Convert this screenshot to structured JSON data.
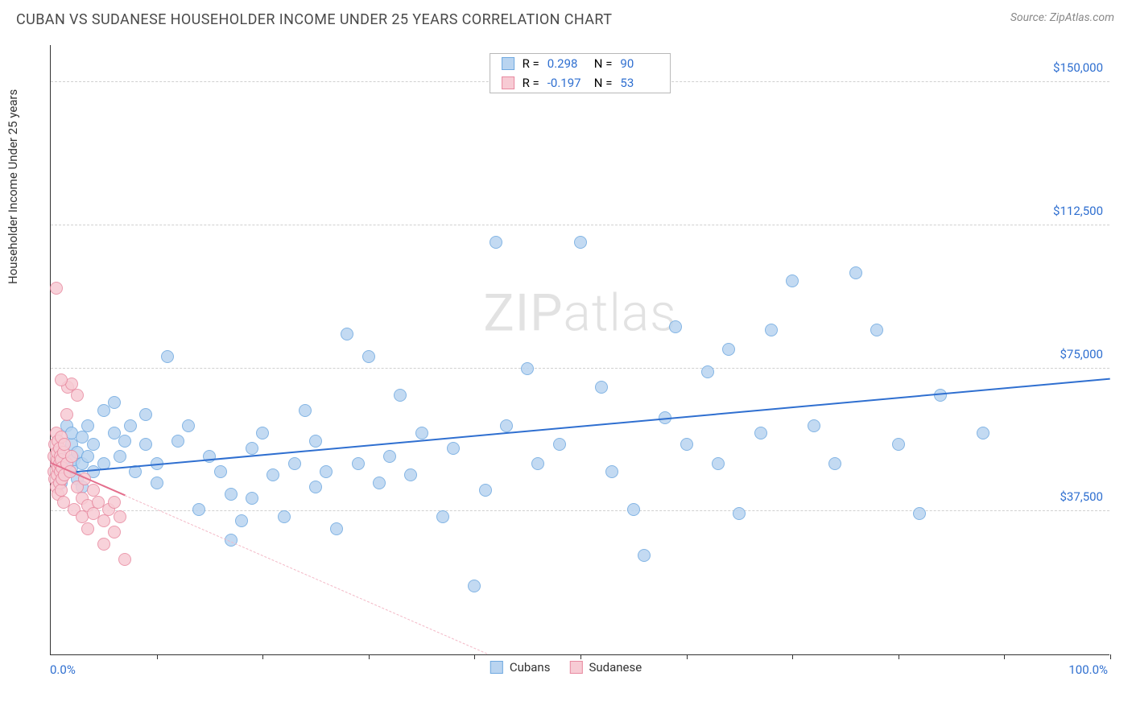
{
  "title": "CUBAN VS SUDANESE HOUSEHOLDER INCOME UNDER 25 YEARS CORRELATION CHART",
  "source": "Source: ZipAtlas.com",
  "watermark_zip": "ZIP",
  "watermark_atlas": "atlas",
  "yaxis_title": "Householder Income Under 25 years",
  "chart": {
    "type": "scatter",
    "xlim": [
      0,
      100
    ],
    "ylim": [
      0,
      160000
    ],
    "x_label_min": "0.0%",
    "x_label_max": "100.0%",
    "x_ticks": [
      10,
      20,
      30,
      40,
      50,
      60,
      70,
      80,
      90,
      100
    ],
    "y_gridlines": [
      {
        "v": 37500,
        "label": "$37,500"
      },
      {
        "v": 75000,
        "label": "$75,000"
      },
      {
        "v": 112500,
        "label": "$112,500"
      },
      {
        "v": 150000,
        "label": "$150,000"
      }
    ],
    "series": [
      {
        "name": "Cubans",
        "color_fill": "#b9d4f0",
        "color_stroke": "#6fa9e0",
        "marker_radius": 8,
        "marker_opacity": 0.85,
        "R": "0.298",
        "N": "90",
        "trend": {
          "x1": 0,
          "y1": 47000,
          "x2": 100,
          "y2": 72000,
          "color": "#2f6fd0",
          "width": 2,
          "dash_extend": false
        },
        "points": [
          [
            0.5,
            50000
          ],
          [
            1,
            52000
          ],
          [
            1,
            45000
          ],
          [
            1.5,
            60000
          ],
          [
            1.5,
            48000
          ],
          [
            2,
            55000
          ],
          [
            2,
            49000
          ],
          [
            2,
            58000
          ],
          [
            2.2,
            51000
          ],
          [
            2.5,
            53000
          ],
          [
            2.5,
            46000
          ],
          [
            3,
            57000
          ],
          [
            3,
            50000
          ],
          [
            3,
            44000
          ],
          [
            3.5,
            60000
          ],
          [
            3.5,
            52000
          ],
          [
            4,
            48000
          ],
          [
            4,
            55000
          ],
          [
            5,
            64000
          ],
          [
            5,
            50000
          ],
          [
            6,
            66000
          ],
          [
            6,
            58000
          ],
          [
            6.5,
            52000
          ],
          [
            7,
            56000
          ],
          [
            7.5,
            60000
          ],
          [
            8,
            48000
          ],
          [
            9,
            63000
          ],
          [
            9,
            55000
          ],
          [
            10,
            50000
          ],
          [
            10,
            45000
          ],
          [
            11,
            78000
          ],
          [
            12,
            56000
          ],
          [
            13,
            60000
          ],
          [
            14,
            38000
          ],
          [
            15,
            52000
          ],
          [
            16,
            48000
          ],
          [
            17,
            30000
          ],
          [
            17,
            42000
          ],
          [
            18,
            35000
          ],
          [
            19,
            54000
          ],
          [
            19,
            41000
          ],
          [
            20,
            58000
          ],
          [
            21,
            47000
          ],
          [
            22,
            36000
          ],
          [
            23,
            50000
          ],
          [
            24,
            64000
          ],
          [
            25,
            56000
          ],
          [
            25,
            44000
          ],
          [
            26,
            48000
          ],
          [
            27,
            33000
          ],
          [
            28,
            84000
          ],
          [
            29,
            50000
          ],
          [
            30,
            78000
          ],
          [
            31,
            45000
          ],
          [
            32,
            52000
          ],
          [
            33,
            68000
          ],
          [
            34,
            47000
          ],
          [
            35,
            58000
          ],
          [
            37,
            36000
          ],
          [
            38,
            54000
          ],
          [
            40,
            18000
          ],
          [
            41,
            43000
          ],
          [
            42,
            108000
          ],
          [
            43,
            60000
          ],
          [
            45,
            75000
          ],
          [
            46,
            50000
          ],
          [
            48,
            55000
          ],
          [
            50,
            108000
          ],
          [
            52,
            70000
          ],
          [
            53,
            48000
          ],
          [
            55,
            38000
          ],
          [
            56,
            26000
          ],
          [
            58,
            62000
          ],
          [
            59,
            86000
          ],
          [
            60,
            55000
          ],
          [
            62,
            74000
          ],
          [
            63,
            50000
          ],
          [
            64,
            80000
          ],
          [
            65,
            37000
          ],
          [
            67,
            58000
          ],
          [
            68,
            85000
          ],
          [
            70,
            98000
          ],
          [
            72,
            60000
          ],
          [
            74,
            50000
          ],
          [
            76,
            100000
          ],
          [
            78,
            85000
          ],
          [
            80,
            55000
          ],
          [
            82,
            37000
          ],
          [
            84,
            68000
          ],
          [
            88,
            58000
          ]
        ]
      },
      {
        "name": "Sudanese",
        "color_fill": "#f7cbd4",
        "color_stroke": "#e88aa0",
        "marker_radius": 8,
        "marker_opacity": 0.85,
        "R": "-0.197",
        "N": "53",
        "trend": {
          "x1": 0,
          "y1": 50000,
          "x2": 7,
          "y2": 41500,
          "color": "#e46f8d",
          "width": 2,
          "dash_extend": true,
          "dash_color": "#f3b8c6"
        },
        "points": [
          [
            0.3,
            52000
          ],
          [
            0.3,
            48000
          ],
          [
            0.4,
            55000
          ],
          [
            0.4,
            46000
          ],
          [
            0.5,
            50000
          ],
          [
            0.5,
            58000
          ],
          [
            0.5,
            44000
          ],
          [
            0.6,
            51000
          ],
          [
            0.6,
            53000
          ],
          [
            0.6,
            47000
          ],
          [
            0.7,
            56000
          ],
          [
            0.7,
            49000
          ],
          [
            0.7,
            42000
          ],
          [
            0.8,
            54000
          ],
          [
            0.8,
            50000
          ],
          [
            0.8,
            45000
          ],
          [
            0.9,
            52000
          ],
          [
            0.9,
            48000
          ],
          [
            1.0,
            57000
          ],
          [
            1.0,
            51000
          ],
          [
            1.0,
            43000
          ],
          [
            1.1,
            49000
          ],
          [
            1.1,
            46000
          ],
          [
            1.2,
            53000
          ],
          [
            1.2,
            40000
          ],
          [
            1.3,
            55000
          ],
          [
            1.3,
            47000
          ],
          [
            1.5,
            63000
          ],
          [
            1.5,
            50000
          ],
          [
            1.6,
            70000
          ],
          [
            1.8,
            48000
          ],
          [
            2.0,
            71000
          ],
          [
            2.0,
            52000
          ],
          [
            2.2,
            38000
          ],
          [
            2.5,
            68000
          ],
          [
            2.5,
            44000
          ],
          [
            0.5,
            96000
          ],
          [
            1.0,
            72000
          ],
          [
            3.0,
            41000
          ],
          [
            3.0,
            36000
          ],
          [
            3.2,
            46000
          ],
          [
            3.5,
            39000
          ],
          [
            3.5,
            33000
          ],
          [
            4.0,
            43000
          ],
          [
            4.0,
            37000
          ],
          [
            4.5,
            40000
          ],
          [
            5.0,
            35000
          ],
          [
            5.0,
            29000
          ],
          [
            5.5,
            38000
          ],
          [
            6.0,
            32000
          ],
          [
            6.0,
            40000
          ],
          [
            6.5,
            36000
          ],
          [
            7.0,
            25000
          ]
        ]
      }
    ],
    "legend_bottom": [
      {
        "label": "Cubans",
        "fill": "#b9d4f0",
        "stroke": "#6fa9e0"
      },
      {
        "label": "Sudanese",
        "fill": "#f7cbd4",
        "stroke": "#e88aa0"
      }
    ],
    "legend_top": {
      "label_R": "R =",
      "label_N": "N ="
    }
  }
}
